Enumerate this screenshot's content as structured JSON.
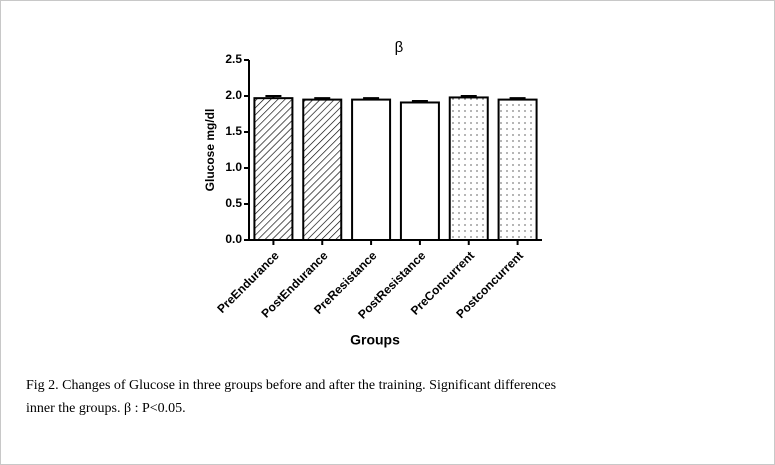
{
  "chart_data": {
    "type": "bar",
    "annotation": "β",
    "y_label": "Glucose mg/dl",
    "x_label": "Groups",
    "categories": [
      "PreEndurance",
      "PostEndurance",
      "PreResistance",
      "PostResistance",
      "PreConcurrent",
      "Postconcurrent"
    ],
    "values": [
      1.97,
      1.95,
      1.95,
      1.91,
      1.98,
      1.95
    ],
    "errors": [
      0.03,
      0.02,
      0.02,
      0.02,
      0.02,
      0.02
    ],
    "patterns": [
      "hatch",
      "hatch",
      "none",
      "none",
      "dots",
      "dots"
    ],
    "color": "#000000",
    "ylim": [
      0,
      2.5
    ],
    "yticks": [
      {
        "value": 0,
        "label": "0.0"
      },
      0.5,
      {
        "value": 1,
        "label": "1.0"
      },
      1.5,
      {
        "value": 2,
        "label": "2.0"
      },
      2.5
    ]
  },
  "caption": {
    "line1": "Fig 2. Changes of Glucose in three groups before and after the training. Significant differences",
    "line2": "inner the groups.   β : P<0.05."
  }
}
